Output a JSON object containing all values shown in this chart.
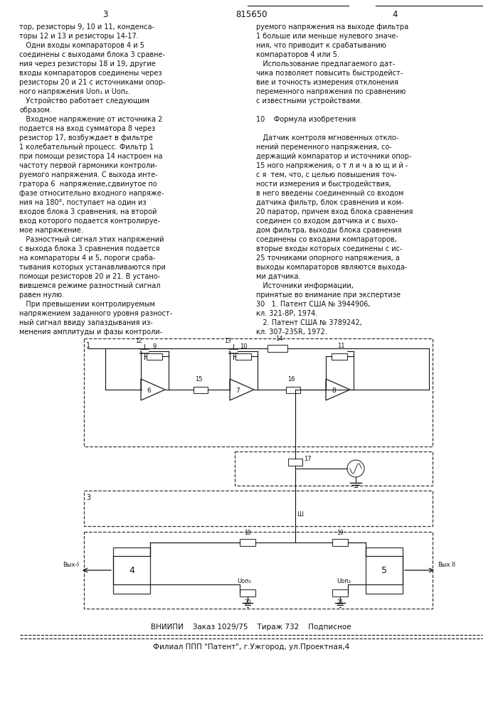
{
  "page_number_left": "3",
  "patent_number": "815650",
  "page_number_right": "4",
  "left_col": [
    "тор, резисторы 9, 10 и 11, конденса-",
    "торы 12 и 13 и резисторы 14-17.",
    "   Одни входы компараторов 4 и 5",
    "соединены с выходами блока 3 сравне-",
    "ния через резисторы 18 и 19, другие",
    "входы компараторов соединены через",
    "резисторы 20 и 21 с источниками опор-",
    "ного напряжения Uоп₁ и Uоп₂.",
    "   Устройство работает следующим",
    "образом.",
    "   Входное напряжение от источника 2",
    "подается на вход сумматора 8 через",
    "резистор 17, возбуждает в фильтре",
    "1 колебательный процесс. Фильтр 1",
    "при помощи резистора 14 настроен на",
    "частоту первой гармоники контроли-",
    "руемого напряжения. С выхода инте-",
    "гратора 6  напряжение,сдвинутое по",
    "фазе относительно входного напряже-",
    "ния на 180°, поступает на один из",
    "входов блока 3 сравнения, на второй",
    "вход которого подается контролируе-",
    "мое напряжение.",
    "   Разностный сигнал этих напряжений",
    "с выхода блока 3 сравнения подается",
    "на компараторы 4 и 5, пороги сраба-",
    "тывания которых устанавливаются при",
    "помощи резисторов 20 и 21. В устано-",
    "вившемся режиме разностный сигнал",
    "равен нулю.",
    "   При превышении контролируемым",
    "напряжением заданного уровня разност-",
    "ный сигнал ввиду запаздывания из-",
    "менения амплитуды и фазы контроли-"
  ],
  "right_col": [
    "руемого напряжения на выходе фильтра",
    "1 больше или меньше нулевого значе-",
    "ния, что приводит к срабатыванию",
    "компараторов 4 или 5.",
    "   Использование предлагаемого дат-",
    "чика позволяет повысить быстродейст-",
    "вие и точность измерения отклонения",
    "переменного напряжения по сравнению",
    "с известными устройствами.",
    "",
    "10    Формула изобретения",
    "",
    "   Датчик контроля мгновенных откло-",
    "нений переменного напряжения, со-",
    "держащий компаратор и источники опор-",
    "15 ного напряжения, о т л и ч а ю щ и й -",
    "с я  тем, что, с целью повышения точ-",
    "ности измерения и быстродействия,",
    "в него введены соединенный со входом",
    "датчика фильтр, блок сравнения и ком-",
    "20 паратор, причем вход блока сравнения",
    "соединен со входом датчика и с выхо-",
    "дом фильтра, выходы блока сравнения",
    "соединены со входами компараторов,",
    "вторые входы которых соединены с ис-",
    "25 точниками опорного напряжения, а",
    "выходы компараторов являются выхода-",
    "ми датчика.",
    "   Источники информации,",
    "принятые во внимание при экспертизе",
    "30   1. Патент США № 3944906,",
    "кл. 321-8Р, 1974.",
    "   2. Патент США № 3789242,",
    "кл. 307-235R, 1972."
  ],
  "footer1": "ВНИИПИ    Заказ 1029/75    Тираж 732    Подписное",
  "footer2": "Филиал ППП \"Патент\", г.Ужгород, ул.Проектная,4",
  "bg": "#ffffff",
  "fg": "#111111"
}
